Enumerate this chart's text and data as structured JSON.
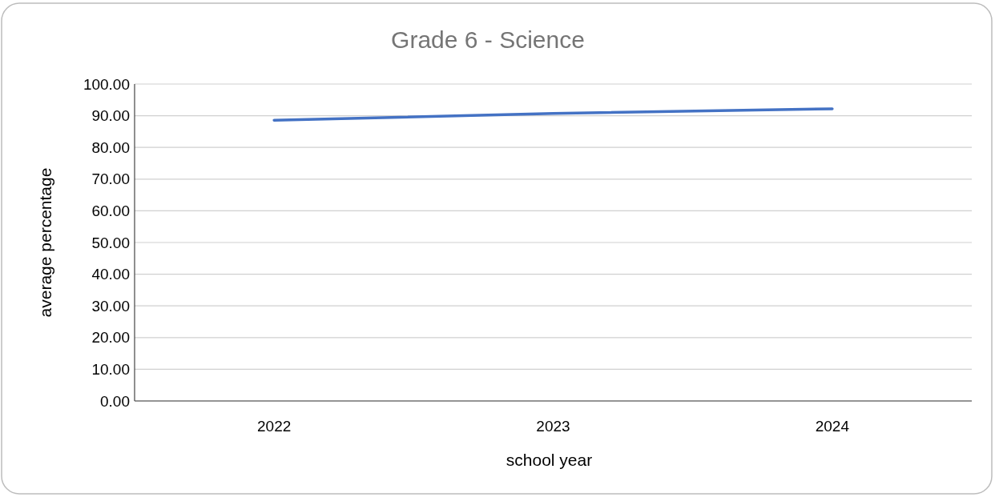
{
  "chart_data": {
    "type": "line",
    "title": "Grade 6 - Science",
    "xlabel": "school year",
    "ylabel": "average percentage",
    "categories": [
      "2022",
      "2023",
      "2024"
    ],
    "series": [
      {
        "color": "#4472c4",
        "values": [
          88.6,
          90.7,
          92.2
        ]
      }
    ],
    "ylim": [
      0,
      100
    ],
    "yticks": [
      {
        "value": 0,
        "label": "0.00"
      },
      {
        "value": 10,
        "label": "10.00"
      },
      {
        "value": 20,
        "label": "20.00"
      },
      {
        "value": 30,
        "label": "30.00"
      },
      {
        "value": 40,
        "label": "40.00"
      },
      {
        "value": 50,
        "label": "50.00"
      },
      {
        "value": 60,
        "label": "60.00"
      },
      {
        "value": 70,
        "label": "70.00"
      },
      {
        "value": 80,
        "label": "80.00"
      },
      {
        "value": 90,
        "label": "90.00"
      },
      {
        "value": 100,
        "label": "100.00"
      }
    ],
    "grid": "y",
    "marker": "none",
    "line_style": "solid"
  }
}
